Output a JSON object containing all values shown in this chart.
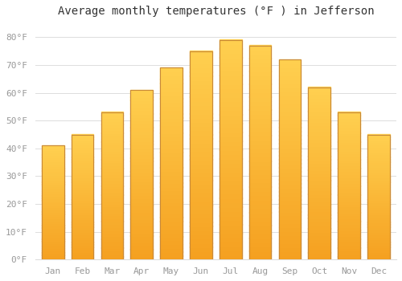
{
  "title": "Average monthly temperatures (°F ) in Jefferson",
  "months": [
    "Jan",
    "Feb",
    "Mar",
    "Apr",
    "May",
    "Jun",
    "Jul",
    "Aug",
    "Sep",
    "Oct",
    "Nov",
    "Dec"
  ],
  "values": [
    41,
    45,
    53,
    61,
    69,
    75,
    79,
    77,
    72,
    62,
    53,
    45
  ],
  "bar_color_bottom": "#F5A623",
  "bar_color_top": "#FFD04A",
  "bar_color_edge": "#C8893A",
  "background_color": "#ffffff",
  "grid_color": "#dddddd",
  "ytick_labels": [
    "0°F",
    "10°F",
    "20°F",
    "30°F",
    "40°F",
    "50°F",
    "60°F",
    "70°F",
    "80°F"
  ],
  "ytick_values": [
    0,
    10,
    20,
    30,
    40,
    50,
    60,
    70,
    80
  ],
  "ylim": [
    0,
    85
  ],
  "title_fontsize": 10,
  "tick_fontsize": 8,
  "tick_color": "#999999",
  "font_family": "monospace"
}
